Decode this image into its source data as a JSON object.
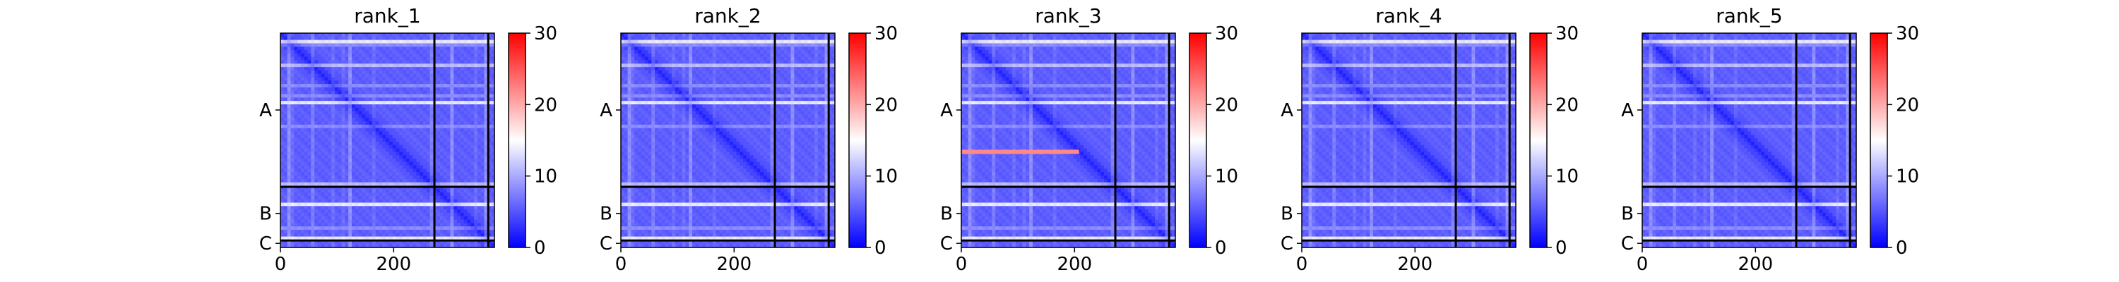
{
  "chart_data": {
    "type": "heatmap",
    "panels": [
      {
        "title": "rank_1",
        "red_rows": [],
        "red_cols": []
      },
      {
        "title": "rank_2",
        "red_rows": [],
        "red_cols": []
      },
      {
        "title": "rank_3",
        "red_rows": [
          210
        ],
        "red_cols": []
      },
      {
        "title": "rank_4",
        "red_rows": [],
        "red_cols": []
      },
      {
        "title": "rank_5",
        "red_rows": [],
        "red_cols": []
      }
    ],
    "matrix_size": 378,
    "chain_breaks": [
      272,
      367
    ],
    "chains": [
      {
        "label": "A",
        "center": 136
      },
      {
        "label": "B",
        "center": 319
      },
      {
        "label": "C",
        "center": 372
      }
    ],
    "x_ticks": [
      0,
      200
    ],
    "colorbar": {
      "min": 0,
      "max": 30,
      "ticks": [
        0,
        10,
        20,
        30
      ],
      "colors": [
        "#0000ff",
        "#ffffff",
        "#ff0000"
      ]
    },
    "high_error_rows": [
      12,
      20,
      55,
      92,
      110,
      120,
      160,
      225,
      265,
      300,
      340,
      360
    ],
    "base_error": 5
  }
}
